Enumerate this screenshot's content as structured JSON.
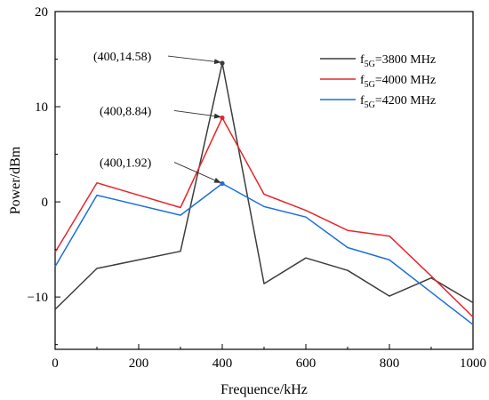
{
  "chart_data": {
    "type": "line",
    "title": "",
    "xlabel": "Frequence/kHz",
    "ylabel": "Power/dBm",
    "xlim": [
      0,
      1000
    ],
    "ylim": [
      -15.5,
      20
    ],
    "x_ticks": [
      0,
      200,
      400,
      600,
      800,
      1000
    ],
    "y_ticks": [
      -10,
      0,
      10,
      20
    ],
    "grid": false,
    "legend_position": "top-right",
    "x": [
      0,
      100,
      300,
      400,
      500,
      600,
      700,
      800,
      900,
      1000
    ],
    "series": [
      {
        "name_prefix": "f",
        "name_subscript": "5G",
        "name_suffix": "=3800 MHz",
        "color": "#3d3d3d",
        "values": [
          -11.3,
          -7.0,
          -5.2,
          14.58,
          -8.6,
          -5.9,
          -7.2,
          -9.9,
          -8.0,
          -10.6
        ]
      },
      {
        "name_prefix": "f",
        "name_subscript": "5G",
        "name_suffix": "=4000 MHz",
        "color": "#e8272c",
        "values": [
          -5.3,
          2.0,
          -0.6,
          8.84,
          0.8,
          -0.9,
          -3.0,
          -3.6,
          -7.8,
          -12.1
        ]
      },
      {
        "name_prefix": "f",
        "name_subscript": "5G",
        "name_suffix": "=4200 MHz",
        "color": "#1e6fd9",
        "values": [
          -6.8,
          0.7,
          -1.4,
          1.92,
          -0.5,
          -1.6,
          -4.8,
          -6.1,
          -9.5,
          -12.9
        ]
      }
    ],
    "annotations": [
      {
        "text": "(400,14.58)",
        "x": 400,
        "y": 14.58,
        "series": 0
      },
      {
        "text": "(400,8.84)",
        "x": 400,
        "y": 8.84,
        "series": 1
      },
      {
        "text": "(400,1.92)",
        "x": 400,
        "y": 1.92,
        "series": 2
      }
    ]
  }
}
